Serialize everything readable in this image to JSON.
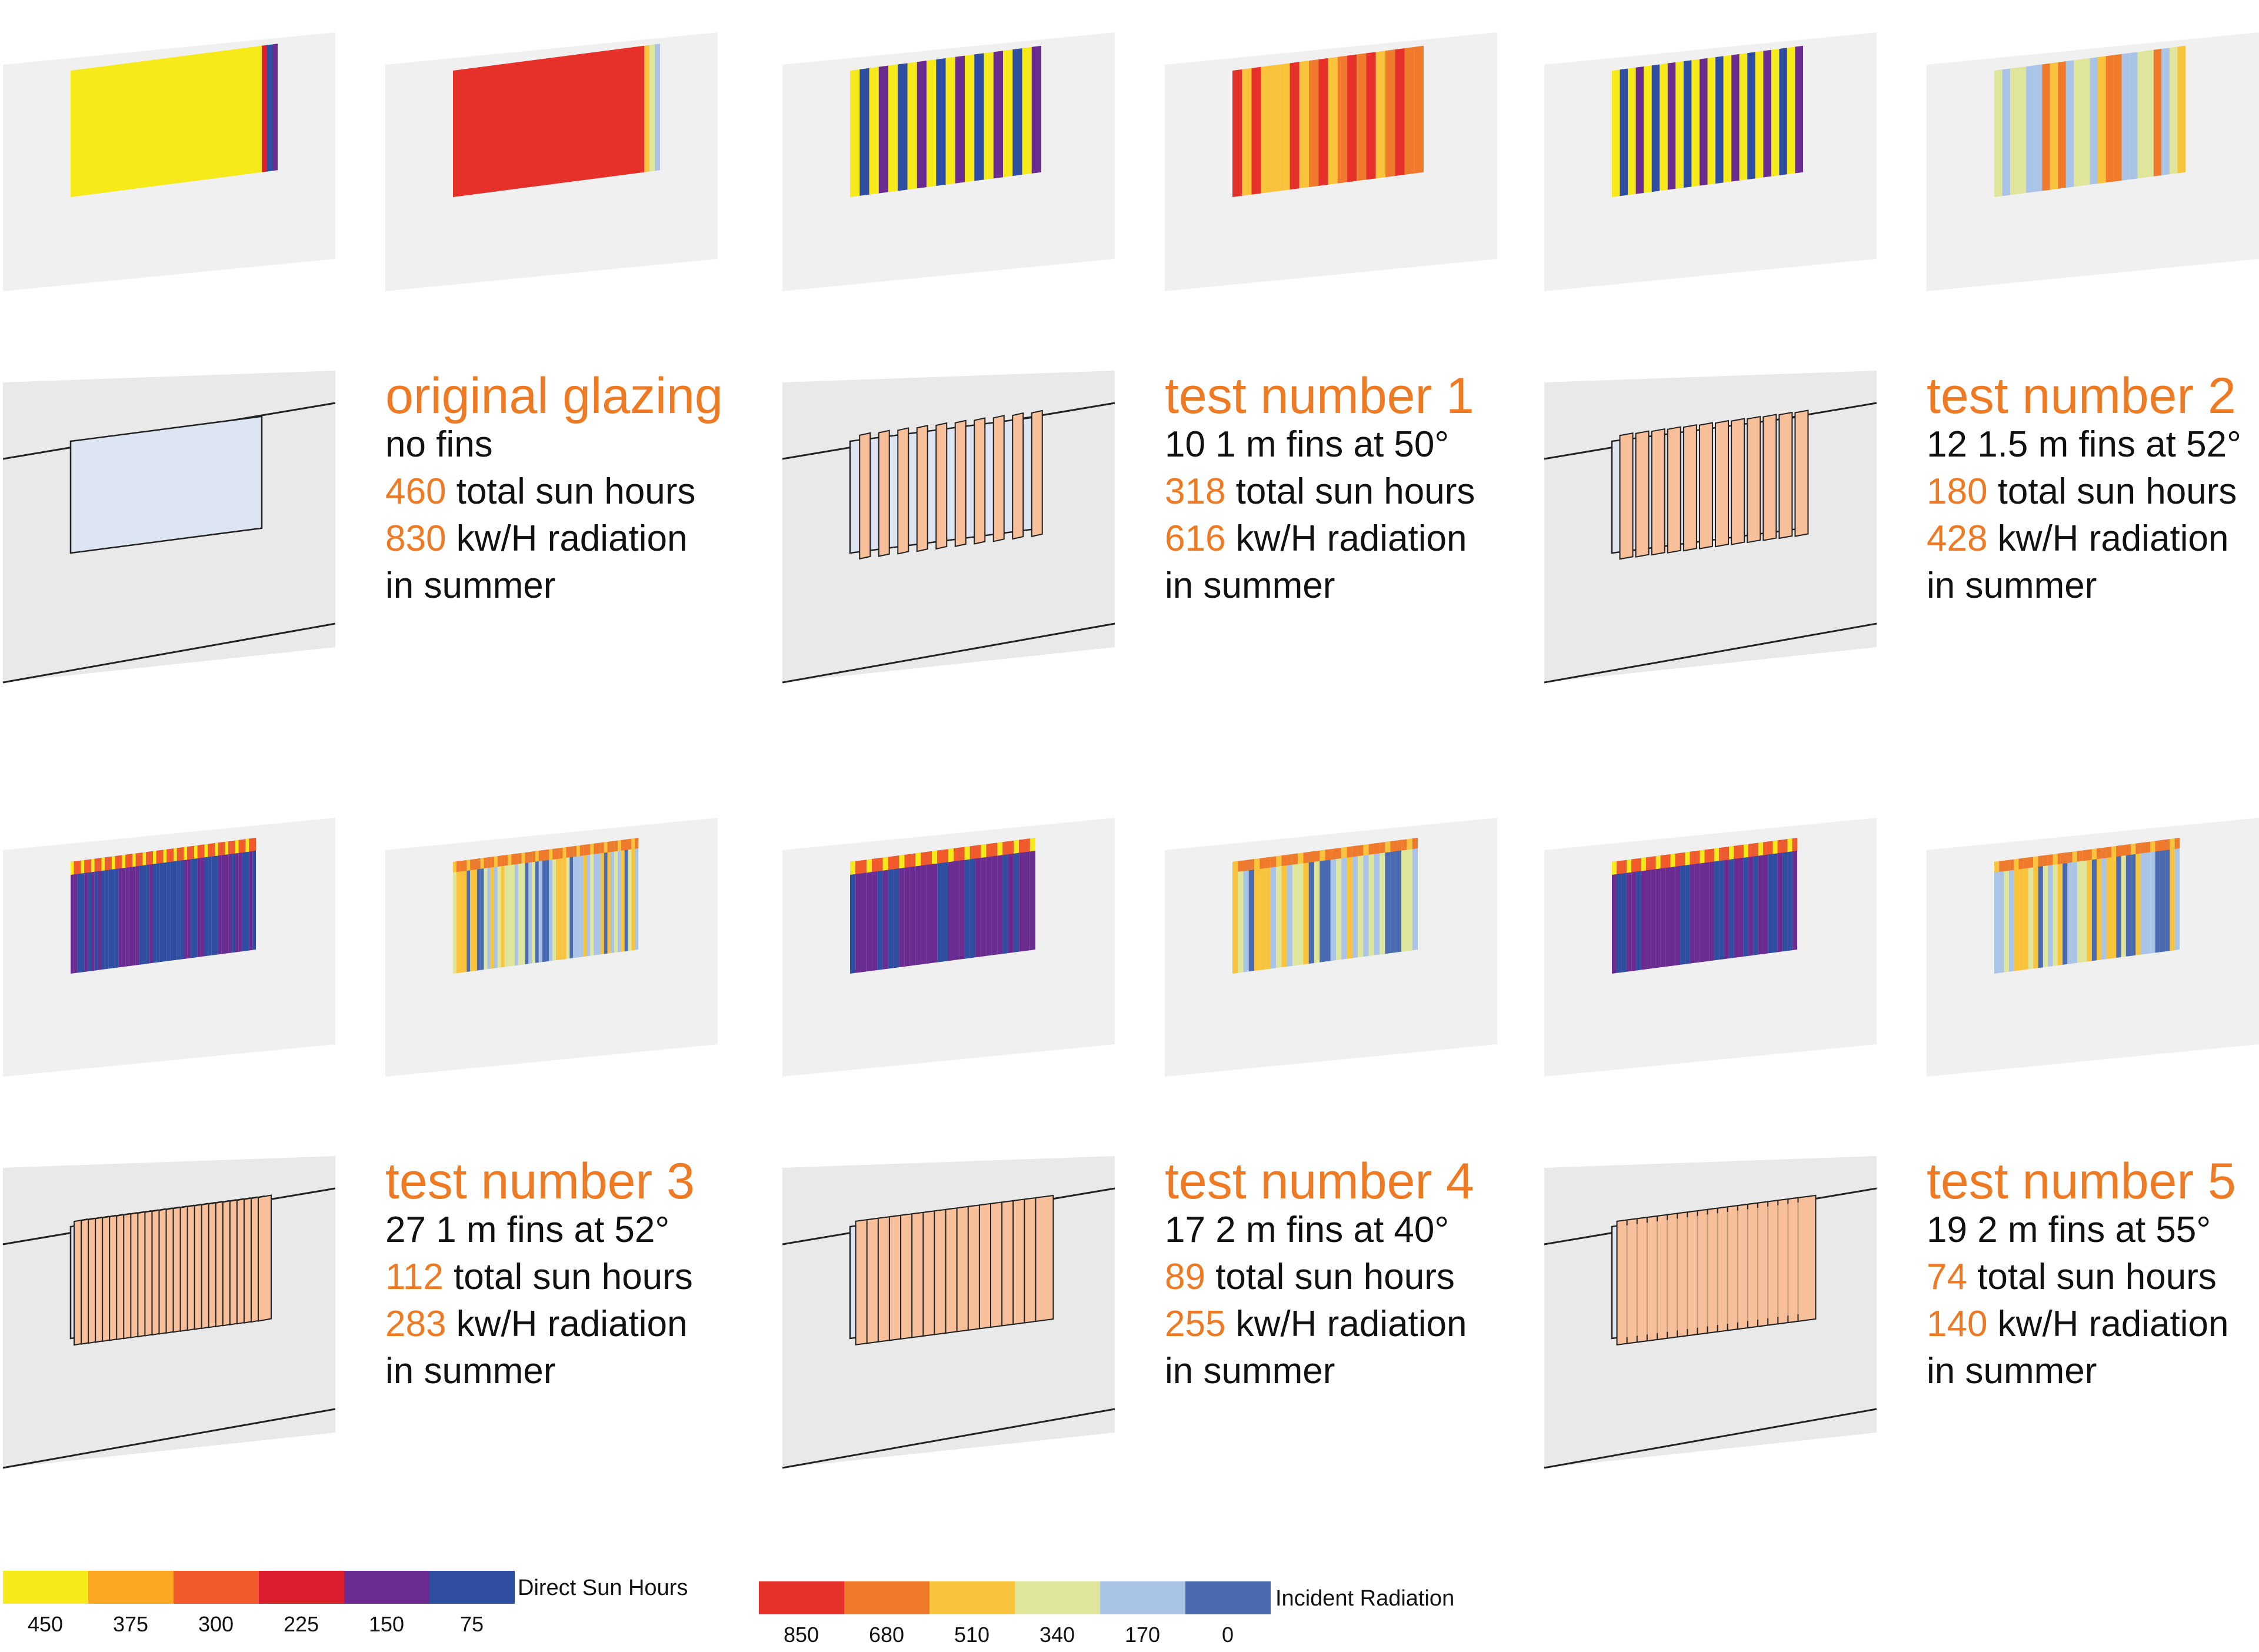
{
  "tests": [
    {
      "title": "original glazing",
      "fins": "no fins",
      "sun_hours": "460",
      "sun_hours_text": " total sun hours",
      "radiation": "830",
      "radiation_text": " kw/H radiation",
      "season": "in summer",
      "fin_count": 0
    },
    {
      "title": "test number 1",
      "fins": "10 1 m fins at 50°",
      "sun_hours": "318",
      "sun_hours_text": " total sun hours",
      "radiation": "616",
      "radiation_text": " kw/H radiation",
      "season": "in summer",
      "fin_count": 10
    },
    {
      "title": "test number 2",
      "fins": "12 1.5 m fins at 52°",
      "sun_hours": "180",
      "sun_hours_text": " total sun hours",
      "radiation": "428",
      "radiation_text": " kw/H radiation",
      "season": "in summer",
      "fin_count": 12
    },
    {
      "title": "test number 3",
      "fins": "27 1 m fins at 52°",
      "sun_hours": "112",
      "sun_hours_text": " total sun hours",
      "radiation": "283",
      "radiation_text": " kw/H radiation",
      "season": "in summer",
      "fin_count": 27
    },
    {
      "title": "test number 4",
      "fins": "17 2 m fins at 40°",
      "sun_hours": "89",
      "sun_hours_text": " total sun hours",
      "radiation": "255",
      "radiation_text": " kw/H radiation",
      "season": "in summer",
      "fin_count": 17
    },
    {
      "title": "test number 5",
      "fins": "19 2 m fins at 55°",
      "sun_hours": "74",
      "sun_hours_text": " total sun hours",
      "radiation": "140",
      "radiation_text": " kw/H radiation",
      "season": "in summer",
      "fin_count": 19
    }
  ],
  "legends": {
    "sun": {
      "title": "Direct Sun Hours",
      "colors": [
        "#f7ea1a",
        "#fca721",
        "#f15a2a",
        "#da1e2e",
        "#6b2c91",
        "#2f4da1"
      ],
      "ticks": [
        "450",
        "375",
        "300",
        "225",
        "150",
        "75"
      ]
    },
    "radiation": {
      "title": "Incident Radiation",
      "colors": [
        "#e5312a",
        "#ef7a2b",
        "#f9c33b",
        "#dfe59a",
        "#a9c4e6",
        "#4a6bb0"
      ],
      "ticks": [
        "850",
        "680",
        "510",
        "340",
        "170",
        "0"
      ]
    }
  },
  "colors": {
    "wall": "#f0f0f0",
    "wall_dark": "#e9e9e9",
    "glass": "#dde5f3",
    "fin": "#f7bf9a",
    "title_orange": "#ef7a24"
  }
}
